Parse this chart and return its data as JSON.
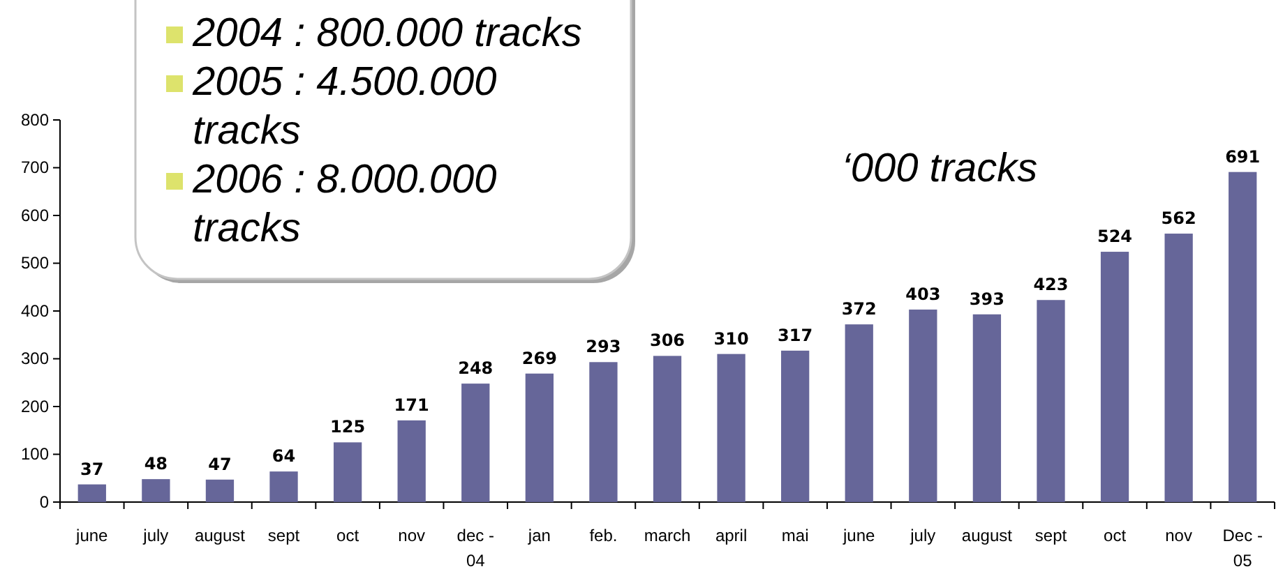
{
  "chart_data": {
    "type": "bar",
    "categories": [
      "june",
      "july",
      "august",
      "sept",
      "oct",
      "nov",
      "dec - 04",
      "jan",
      "feb.",
      "march",
      "april",
      "mai",
      "june",
      "july",
      "august",
      "sept",
      "oct",
      "nov",
      "Dec - 05"
    ],
    "values": [
      37,
      48,
      47,
      64,
      125,
      171,
      248,
      269,
      293,
      306,
      310,
      317,
      372,
      403,
      393,
      423,
      524,
      562,
      691
    ],
    "color": "#666699",
    "ylim": [
      0,
      800
    ],
    "yticks": [
      0,
      100,
      200,
      300,
      400,
      500,
      600,
      700,
      800
    ],
    "ylabel": "‘000 tracks",
    "annotations": [
      "2004 : 800.000 tracks",
      "2005 : 4.500.000 tracks",
      "2006 : 8.000.000 tracks"
    ],
    "data_labels": true
  }
}
